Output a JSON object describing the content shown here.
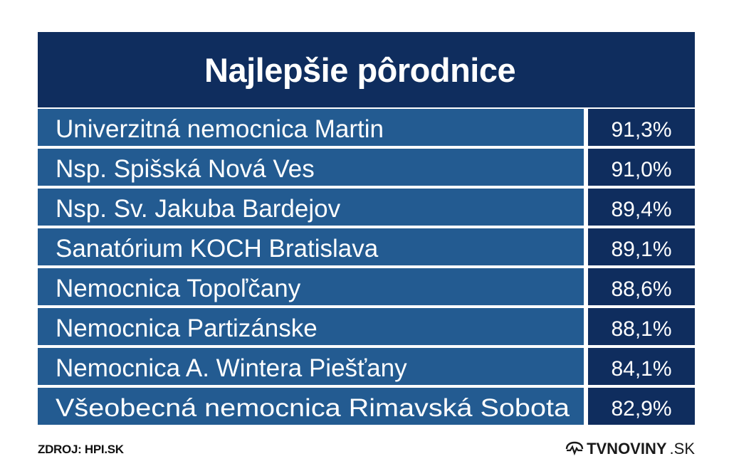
{
  "title": "Najlepšie pôrodnice",
  "source": "ZDROJ: HPI.SK",
  "brand": {
    "name": "TVNOVINY",
    "domain": ".SK"
  },
  "colors": {
    "title_bg": "#0f2d5e",
    "row_label_bg": "#235b91",
    "row_value_bg": "#0f2d5e",
    "text": "#ffffff"
  },
  "chart_data": {
    "type": "table",
    "title": "Najlepšie pôrodnice",
    "categories": [
      "Univerzitná nemocnica Martin",
      "Nsp. Spišská Nová Ves",
      "Nsp. Sv. Jakuba Bardejov",
      "Sanatórium KOCH Bratislava",
      "Nemocnica Topoľčany",
      "Nemocnica Partizánske",
      "Nemocnica A. Wintera Piešťany",
      "Všeobecná nemocnica Rimavská Sobota"
    ],
    "values": [
      91.3,
      91.0,
      89.4,
      89.1,
      88.6,
      88.1,
      84.1,
      82.9
    ],
    "value_labels": [
      "91,3%",
      "91,0%",
      "89,4%",
      "89,1%",
      "88,6%",
      "88,1%",
      "84,1%",
      "82,9%"
    ]
  }
}
